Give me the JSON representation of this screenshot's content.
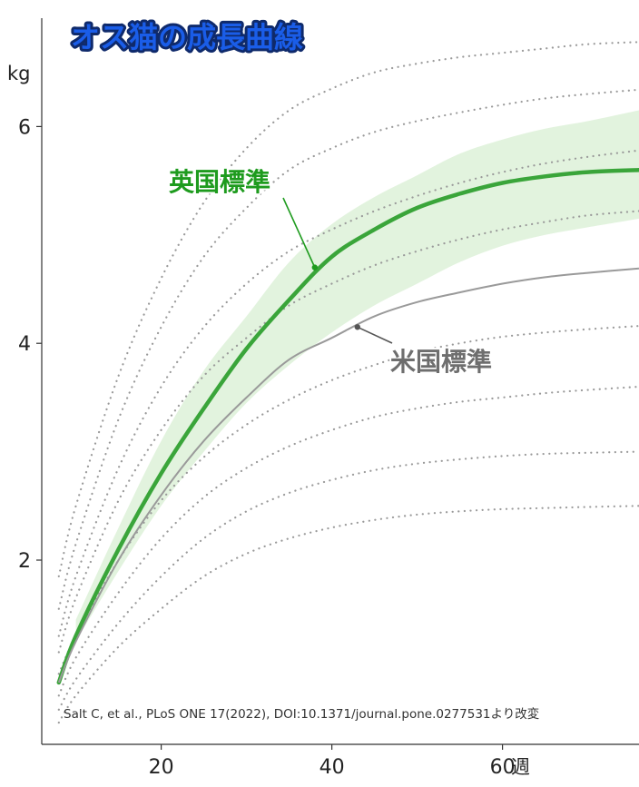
{
  "chart_data": {
    "type": "line",
    "title": "オス猫の成長曲線",
    "xlabel": "週",
    "ylabel": "kg",
    "xlim": [
      6,
      76
    ],
    "ylim": [
      0.3,
      7.0
    ],
    "x_ticks": [
      20,
      40,
      60
    ],
    "y_ticks": [
      2,
      4,
      6
    ],
    "grid": false,
    "colors": {
      "title_fill": "#1a5de8",
      "title_stroke": "#0f2a6b",
      "uk": "#3aa53a",
      "uk_label": "#1e9b1e",
      "band": "#e2f3de",
      "us": "#9a9a9a",
      "us_label": "#6e6e6e",
      "centile": "#9a9a9a"
    },
    "band": {
      "name": "UK range",
      "x": [
        10,
        15,
        20,
        25,
        30,
        35,
        40,
        45,
        50,
        55,
        60,
        65,
        70,
        76
      ],
      "lower": [
        1.25,
        1.9,
        2.5,
        3.0,
        3.45,
        3.8,
        4.1,
        4.35,
        4.55,
        4.75,
        4.9,
        5.0,
        5.07,
        5.15
      ],
      "upper": [
        1.45,
        2.3,
        3.1,
        3.75,
        4.25,
        4.75,
        5.1,
        5.35,
        5.55,
        5.75,
        5.88,
        5.98,
        6.05,
        6.15
      ]
    },
    "series": [
      {
        "name": "英国標準",
        "style": "uk",
        "x": [
          8,
          10,
          15,
          20,
          25,
          30,
          35,
          40,
          45,
          50,
          55,
          60,
          65,
          70,
          76
        ],
        "values": [
          0.87,
          1.3,
          2.1,
          2.8,
          3.4,
          3.95,
          4.4,
          4.8,
          5.05,
          5.25,
          5.38,
          5.48,
          5.54,
          5.58,
          5.6
        ]
      },
      {
        "name": "米国標準",
        "style": "us",
        "x": [
          8,
          10,
          15,
          20,
          25,
          30,
          35,
          40,
          45,
          50,
          55,
          60,
          65,
          70,
          76
        ],
        "values": [
          0.87,
          1.25,
          2.0,
          2.6,
          3.1,
          3.5,
          3.85,
          4.05,
          4.25,
          4.38,
          4.47,
          4.55,
          4.61,
          4.65,
          4.69
        ]
      },
      {
        "style": "centile",
        "x": [
          8,
          10,
          15,
          20,
          25,
          30,
          35,
          40,
          45,
          50,
          55,
          60,
          65,
          70,
          76
        ],
        "values": [
          1.85,
          2.5,
          3.7,
          4.6,
          5.3,
          5.8,
          6.15,
          6.35,
          6.5,
          6.58,
          6.64,
          6.68,
          6.72,
          6.76,
          6.78
        ]
      },
      {
        "style": "centile",
        "x": [
          8,
          10,
          15,
          20,
          25,
          30,
          35,
          40,
          45,
          50,
          55,
          60,
          65,
          70,
          76
        ],
        "values": [
          1.55,
          2.15,
          3.3,
          4.15,
          4.8,
          5.25,
          5.6,
          5.8,
          5.95,
          6.05,
          6.13,
          6.2,
          6.26,
          6.3,
          6.34
        ]
      },
      {
        "style": "centile",
        "x": [
          8,
          10,
          15,
          20,
          25,
          30,
          35,
          40,
          45,
          50,
          55,
          60,
          65,
          70,
          76
        ],
        "values": [
          1.3,
          1.85,
          2.85,
          3.6,
          4.15,
          4.55,
          4.85,
          5.05,
          5.22,
          5.36,
          5.48,
          5.58,
          5.66,
          5.72,
          5.78
        ]
      },
      {
        "style": "centile",
        "x": [
          8,
          10,
          15,
          20,
          25,
          30,
          35,
          40,
          45,
          50,
          55,
          60,
          65,
          70,
          76
        ],
        "values": [
          1.15,
          1.65,
          2.55,
          3.2,
          3.7,
          4.05,
          4.35,
          4.55,
          4.72,
          4.85,
          4.96,
          5.05,
          5.12,
          5.18,
          5.22
        ]
      },
      {
        "style": "centile",
        "x": [
          8,
          10,
          15,
          20,
          25,
          30,
          35,
          40,
          45,
          50,
          55,
          60,
          65,
          70,
          76
        ],
        "values": [
          0.95,
          1.3,
          2.0,
          2.55,
          2.95,
          3.25,
          3.48,
          3.66,
          3.8,
          3.92,
          4.0,
          4.06,
          4.1,
          4.13,
          4.16
        ]
      },
      {
        "style": "centile",
        "x": [
          8,
          10,
          15,
          20,
          25,
          30,
          35,
          40,
          45,
          50,
          55,
          60,
          65,
          70,
          76
        ],
        "values": [
          0.75,
          1.1,
          1.7,
          2.2,
          2.58,
          2.85,
          3.05,
          3.2,
          3.32,
          3.4,
          3.46,
          3.5,
          3.54,
          3.57,
          3.6
        ]
      },
      {
        "style": "centile",
        "x": [
          8,
          10,
          15,
          20,
          25,
          30,
          35,
          40,
          45,
          50,
          55,
          60,
          65,
          70,
          76
        ],
        "values": [
          0.62,
          0.9,
          1.42,
          1.85,
          2.2,
          2.45,
          2.62,
          2.74,
          2.83,
          2.89,
          2.93,
          2.96,
          2.98,
          2.99,
          3.0
        ]
      },
      {
        "style": "centile",
        "x": [
          8,
          10,
          15,
          20,
          25,
          30,
          35,
          40,
          45,
          50,
          55,
          60,
          65,
          70,
          76
        ],
        "values": [
          0.5,
          0.75,
          1.2,
          1.55,
          1.85,
          2.06,
          2.2,
          2.3,
          2.37,
          2.42,
          2.45,
          2.47,
          2.48,
          2.49,
          2.5
        ]
      }
    ],
    "annotations": [
      {
        "text": "英国標準",
        "style": "uk",
        "point_x": 38,
        "point_y": 4.7
      },
      {
        "text": "米国標準",
        "style": "us",
        "point_x": 43,
        "point_y": 4.15
      }
    ],
    "source_note": "Salt C, et al., PLoS ONE 17(2022), DOI:10.1371/journal.pone.0277531より改変"
  }
}
